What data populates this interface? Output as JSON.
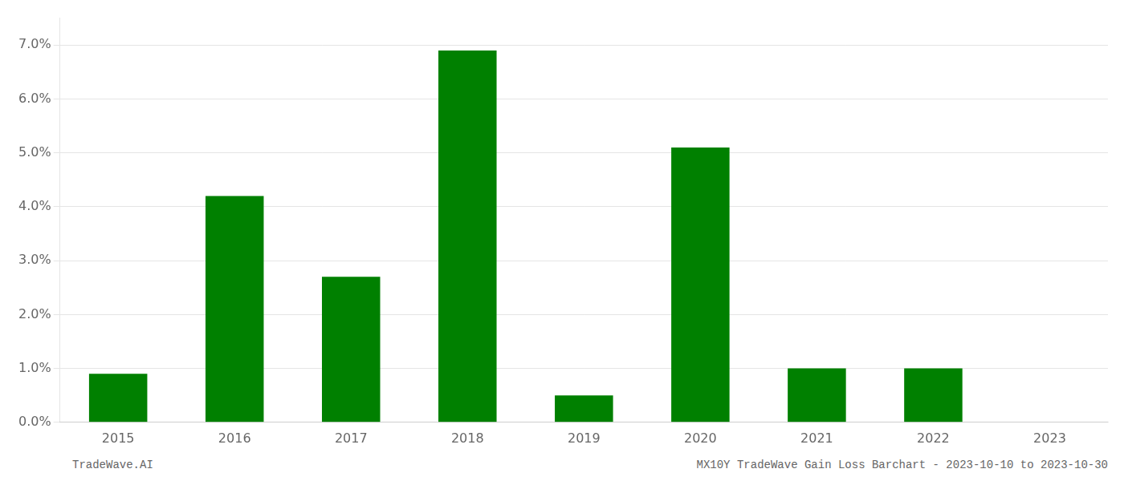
{
  "chart_data": {
    "type": "bar",
    "categories": [
      "2015",
      "2016",
      "2017",
      "2018",
      "2019",
      "2020",
      "2021",
      "2022",
      "2023"
    ],
    "values": [
      0.009,
      0.042,
      0.027,
      0.069,
      0.005,
      0.051,
      0.01,
      0.01,
      0.0
    ],
    "color": "#008000",
    "ylim": [
      0,
      0.075
    ],
    "yticks": [
      {
        "value": 0,
        "label": "0.0%"
      },
      {
        "value": 0.01,
        "label": "1.0%"
      },
      {
        "value": 0.02,
        "label": "2.0%"
      },
      {
        "value": 0.03,
        "label": "3.0%"
      },
      {
        "value": 0.04,
        "label": "4.0%"
      },
      {
        "value": 0.05,
        "label": "5.0%"
      },
      {
        "value": 0.06,
        "label": "6.0%"
      },
      {
        "value": 0.07,
        "label": "7.0%"
      }
    ],
    "grid": true,
    "annotations": [
      "TradeWave.AI",
      "MX10Y TradeWave Gain Loss Barchart - 2023-10-10 to 2023-10-30"
    ]
  }
}
